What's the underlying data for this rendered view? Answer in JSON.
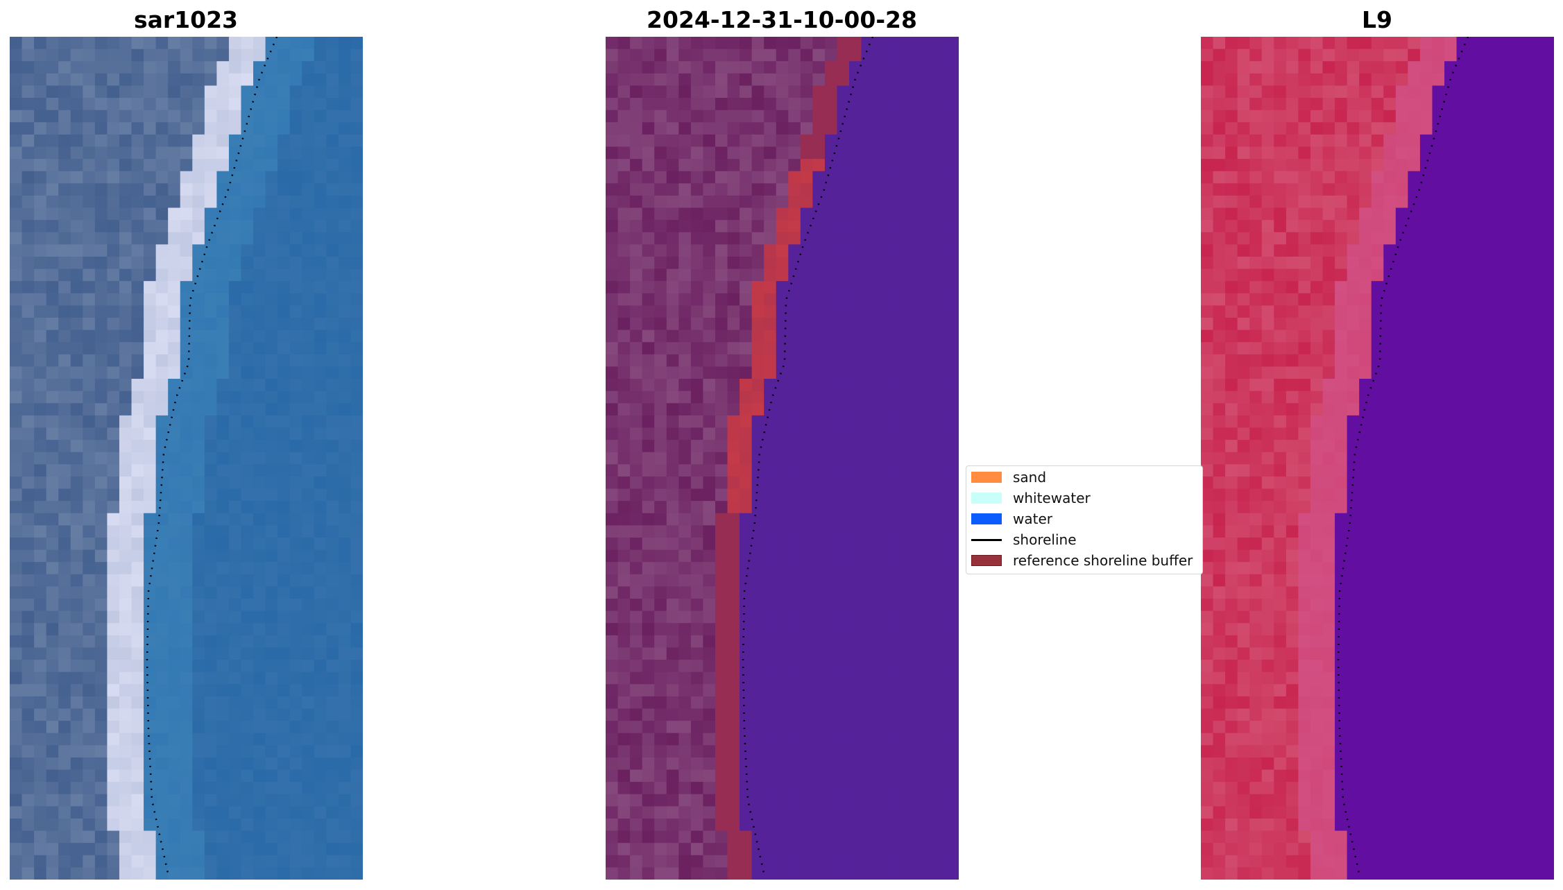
{
  "panels": [
    {
      "title": "sar1023"
    },
    {
      "title": "2024-12-31-10-00-28"
    },
    {
      "title": "L9"
    }
  ],
  "legend": {
    "items": [
      {
        "label": "sand",
        "color": "#ff8c3f",
        "kind": "patch"
      },
      {
        "label": "whitewater",
        "color": "#c8fff8",
        "kind": "patch"
      },
      {
        "label": "water",
        "color": "#0a5cff",
        "kind": "patch"
      },
      {
        "label": "shoreline",
        "color": "#000000",
        "kind": "line"
      },
      {
        "label": "reference shoreline buffer",
        "color": "#98323a",
        "kind": "patch"
      }
    ]
  },
  "colors": {
    "rgb_land": "#44608f",
    "rgb_beach": "#d8dcf2",
    "rgb_water": "#2a6aa8",
    "classified_land": "#6b2060",
    "classified_buffer": "#c43a48",
    "classified_water": "#55229a",
    "nir_land": "#c8254f",
    "nir_water": "#620ea0",
    "shoreline": "#000000"
  }
}
